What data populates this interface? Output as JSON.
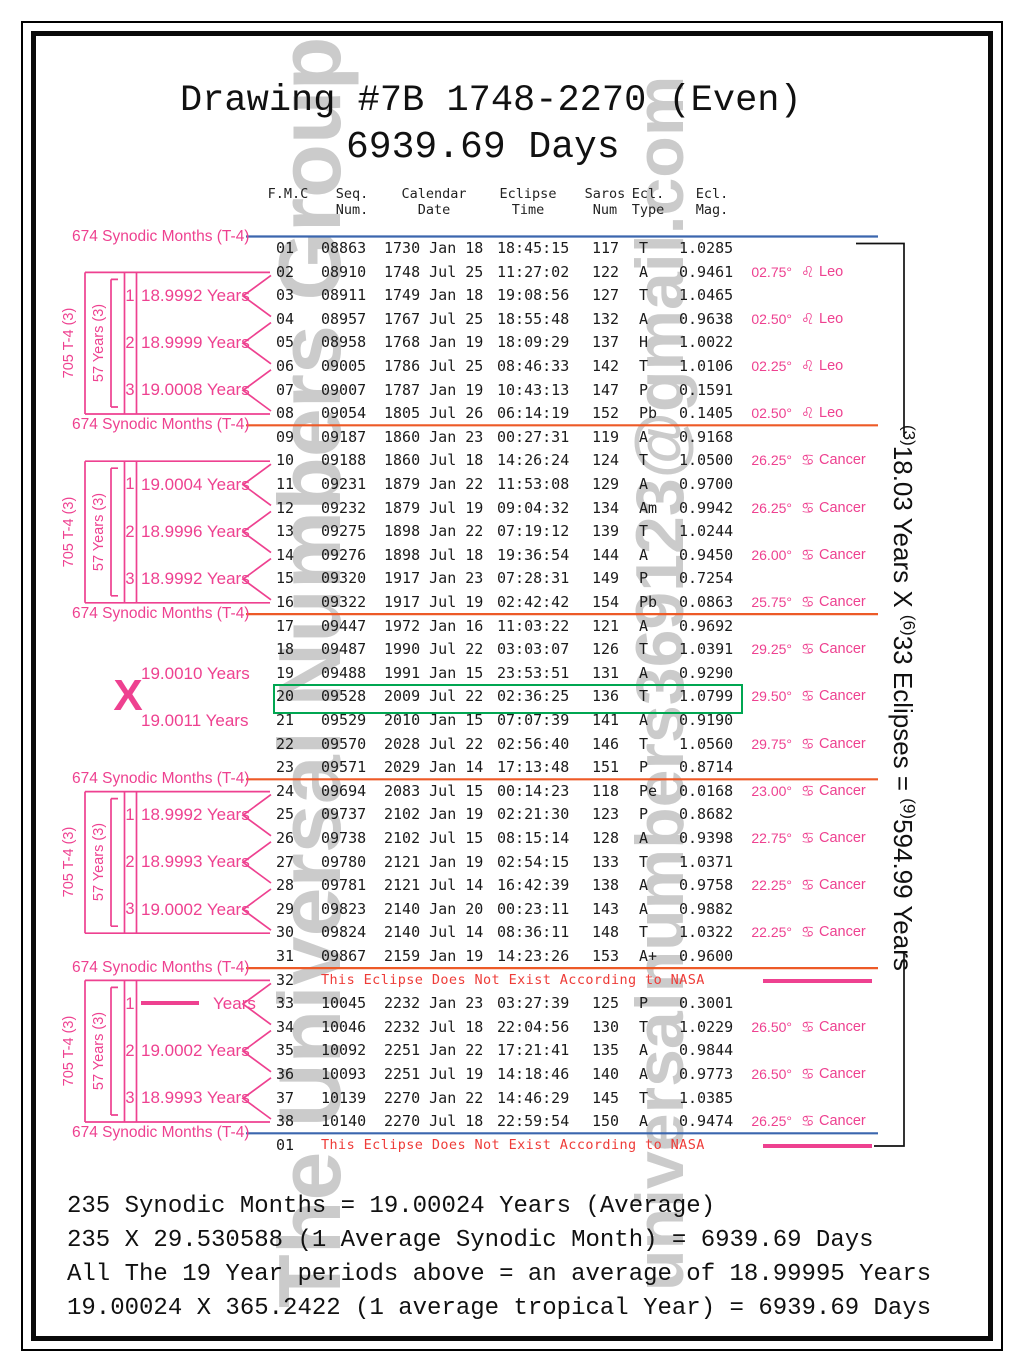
{
  "title": {
    "line1": "Drawing #7B 1748-2270 (Even)",
    "line2": "6939.69 Days"
  },
  "table": {
    "headers": [
      {
        "l1": "F.M.C",
        "l2": ""
      },
      {
        "l1": "Seq.",
        "l2": "Num."
      },
      {
        "l1": "Calendar",
        "l2": "Date"
      },
      {
        "l1": "Eclipse",
        "l2": "Time"
      },
      {
        "l1": "Saros",
        "l2": "Num"
      },
      {
        "l1": "Ecl.",
        "l2": "Type"
      },
      {
        "l1": "Ecl.",
        "l2": "Mag."
      }
    ],
    "rows": [
      {
        "n": "01",
        "seq": "08863",
        "date": "1730 Jan 18",
        "time": "18:45:15",
        "saros": "117",
        "type": "T",
        "mag": "1.0285"
      },
      {
        "n": "02",
        "seq": "08910",
        "date": "1748 Jul 25",
        "time": "11:27:02",
        "saros": "122",
        "type": "A",
        "mag": "0.9461",
        "deg": "02.75°",
        "sign": "leo"
      },
      {
        "n": "03",
        "seq": "08911",
        "date": "1749 Jan 18",
        "time": "19:08:56",
        "saros": "127",
        "type": "T",
        "mag": "1.0465"
      },
      {
        "n": "04",
        "seq": "08957",
        "date": "1767 Jul 25",
        "time": "18:55:48",
        "saros": "132",
        "type": "A",
        "mag": "0.9638",
        "deg": "02.50°",
        "sign": "leo"
      },
      {
        "n": "05",
        "seq": "08958",
        "date": "1768 Jan 19",
        "time": "18:09:29",
        "saros": "137",
        "type": "H",
        "mag": "1.0022"
      },
      {
        "n": "06",
        "seq": "09005",
        "date": "1786 Jul 25",
        "time": "08:46:33",
        "saros": "142",
        "type": "T",
        "mag": "1.0106",
        "deg": "02.25°",
        "sign": "leo"
      },
      {
        "n": "07",
        "seq": "09007",
        "date": "1787 Jan 19",
        "time": "10:43:13",
        "saros": "147",
        "type": "P",
        "mag": "0.1591"
      },
      {
        "n": "08",
        "seq": "09054",
        "date": "1805 Jul 26",
        "time": "06:14:19",
        "saros": "152",
        "type": "Pb",
        "mag": "0.1405",
        "deg": "02.50°",
        "sign": "leo"
      },
      {
        "n": "09",
        "seq": "09187",
        "date": "1860 Jan 23",
        "time": "00:27:31",
        "saros": "119",
        "type": "A",
        "mag": "0.9168"
      },
      {
        "n": "10",
        "seq": "09188",
        "date": "1860 Jul 18",
        "time": "14:26:24",
        "saros": "124",
        "type": "T",
        "mag": "1.0500",
        "deg": "26.25°",
        "sign": "cancer"
      },
      {
        "n": "11",
        "seq": "09231",
        "date": "1879 Jan 22",
        "time": "11:53:08",
        "saros": "129",
        "type": "A",
        "mag": "0.9700"
      },
      {
        "n": "12",
        "seq": "09232",
        "date": "1879 Jul 19",
        "time": "09:04:32",
        "saros": "134",
        "type": "Am",
        "mag": "0.9942",
        "deg": "26.25°",
        "sign": "cancer"
      },
      {
        "n": "13",
        "seq": "09275",
        "date": "1898 Jan 22",
        "time": "07:19:12",
        "saros": "139",
        "type": "T",
        "mag": "1.0244"
      },
      {
        "n": "14",
        "seq": "09276",
        "date": "1898 Jul 18",
        "time": "19:36:54",
        "saros": "144",
        "type": "A",
        "mag": "0.9450",
        "deg": "26.00°",
        "sign": "cancer"
      },
      {
        "n": "15",
        "seq": "09320",
        "date": "1917 Jan 23",
        "time": "07:28:31",
        "saros": "149",
        "type": "P",
        "mag": "0.7254"
      },
      {
        "n": "16",
        "seq": "09322",
        "date": "1917 Jul 19",
        "time": "02:42:42",
        "saros": "154",
        "type": "Pb",
        "mag": "0.0863",
        "deg": "25.75°",
        "sign": "cancer"
      },
      {
        "n": "17",
        "seq": "09447",
        "date": "1972 Jan 16",
        "time": "11:03:22",
        "saros": "121",
        "type": "A",
        "mag": "0.9692"
      },
      {
        "n": "18",
        "seq": "09487",
        "date": "1990 Jul 22",
        "time": "03:03:07",
        "saros": "126",
        "type": "T",
        "mag": "1.0391",
        "deg": "29.25°",
        "sign": "cancer"
      },
      {
        "n": "19",
        "seq": "09488",
        "date": "1991 Jan 15",
        "time": "23:53:51",
        "saros": "131",
        "type": "A",
        "mag": "0.9290"
      },
      {
        "n": "20",
        "seq": "09528",
        "date": "2009 Jul 22",
        "time": "02:36:25",
        "saros": "136",
        "type": "T",
        "mag": "1.0799",
        "deg": "29.50°",
        "sign": "cancer",
        "hl": true
      },
      {
        "n": "21",
        "seq": "09529",
        "date": "2010 Jan 15",
        "time": "07:07:39",
        "saros": "141",
        "type": "A",
        "mag": "0.9190"
      },
      {
        "n": "22",
        "seq": "09570",
        "date": "2028 Jul 22",
        "time": "02:56:40",
        "saros": "146",
        "type": "T",
        "mag": "1.0560",
        "deg": "29.75°",
        "sign": "cancer"
      },
      {
        "n": "23",
        "seq": "09571",
        "date": "2029 Jan 14",
        "time": "17:13:48",
        "saros": "151",
        "type": "P",
        "mag": "0.8714"
      },
      {
        "n": "24",
        "seq": "09694",
        "date": "2083 Jul 15",
        "time": "00:14:23",
        "saros": "118",
        "type": "Pe",
        "mag": "0.0168",
        "deg": "23.00°",
        "sign": "cancer"
      },
      {
        "n": "25",
        "seq": "09737",
        "date": "2102 Jan 19",
        "time": "02:21:30",
        "saros": "123",
        "type": "P",
        "mag": "0.8682"
      },
      {
        "n": "26",
        "seq": "09738",
        "date": "2102 Jul 15",
        "time": "08:15:14",
        "saros": "128",
        "type": "A",
        "mag": "0.9398",
        "deg": "22.75°",
        "sign": "cancer"
      },
      {
        "n": "27",
        "seq": "09780",
        "date": "2121 Jan 19",
        "time": "02:54:15",
        "saros": "133",
        "type": "T",
        "mag": "1.0371"
      },
      {
        "n": "28",
        "seq": "09781",
        "date": "2121 Jul 14",
        "time": "16:42:39",
        "saros": "138",
        "type": "A",
        "mag": "0.9758",
        "deg": "22.25°",
        "sign": "cancer"
      },
      {
        "n": "29",
        "seq": "09823",
        "date": "2140 Jan 20",
        "time": "00:23:11",
        "saros": "143",
        "type": "A",
        "mag": "0.9882"
      },
      {
        "n": "30",
        "seq": "09824",
        "date": "2140 Jul 14",
        "time": "08:36:11",
        "saros": "148",
        "type": "T",
        "mag": "1.0322",
        "deg": "22.25°",
        "sign": "cancer"
      },
      {
        "n": "31",
        "seq": "09867",
        "date": "2159 Jan 19",
        "time": "14:23:26",
        "saros": "153",
        "type": "A+",
        "mag": "0.9600"
      },
      {
        "n": "32",
        "missing": true
      },
      {
        "n": "33",
        "seq": "10045",
        "date": "2232 Jan 23",
        "time": "03:27:39",
        "saros": "125",
        "type": "P",
        "mag": "0.3001"
      },
      {
        "n": "34",
        "seq": "10046",
        "date": "2232 Jul 18",
        "time": "22:04:56",
        "saros": "130",
        "type": "T",
        "mag": "1.0229",
        "deg": "26.50°",
        "sign": "cancer"
      },
      {
        "n": "35",
        "seq": "10092",
        "date": "2251 Jan 22",
        "time": "17:21:41",
        "saros": "135",
        "type": "A",
        "mag": "0.9844"
      },
      {
        "n": "36",
        "seq": "10093",
        "date": "2251 Jul 19",
        "time": "14:18:46",
        "saros": "140",
        "type": "A",
        "mag": "0.9773",
        "deg": "26.50°",
        "sign": "cancer"
      },
      {
        "n": "37",
        "seq": "10139",
        "date": "2270 Jan 22",
        "time": "14:46:29",
        "saros": "145",
        "type": "T",
        "mag": "1.0385"
      },
      {
        "n": "38",
        "seq": "10140",
        "date": "2270 Jul 18",
        "time": "22:59:54",
        "saros": "150",
        "type": "A",
        "mag": "0.9474",
        "deg": "26.25°",
        "sign": "cancer"
      },
      {
        "n": "01",
        "missing": true
      }
    ]
  },
  "missing_text": "This Eclipse Does Not Exist According to NASA",
  "zodiac": {
    "leo": {
      "glyph": "♌",
      "name": "Leo"
    },
    "cancer": {
      "glyph": "♋",
      "name": "Cancer"
    }
  },
  "left": {
    "synodic_label": "674 Synodic Months (T-4)",
    "separators": [
      {
        "above_rows": 0,
        "color": "blue"
      },
      {
        "above_rows": 8,
        "color": "orange"
      },
      {
        "above_rows": 16,
        "color": "orange"
      },
      {
        "above_rows": 23,
        "color": "orange"
      },
      {
        "above_rows": 31,
        "color": "orange"
      },
      {
        "above_rows": 38,
        "color": "blue"
      }
    ],
    "groups": [
      {
        "bracket_outer": "705 T-4  (3)",
        "bracket_inner": "57 Years (3)",
        "first_row": 2,
        "last_row": 8,
        "items": [
          {
            "num": "1",
            "label": "18.9992 Years"
          },
          {
            "num": "2",
            "label": "18.9999 Years"
          },
          {
            "num": "3",
            "label": "19.0008 Years"
          }
        ]
      },
      {
        "bracket_outer": "705 T-4  (3)",
        "bracket_inner": "57 Years (3)",
        "first_row": 10,
        "last_row": 16,
        "items": [
          {
            "num": "1",
            "label": "19.0004 Years"
          },
          {
            "num": "2",
            "label": "18.9996 Years"
          },
          {
            "num": "3",
            "label": "18.9992 Years"
          }
        ]
      },
      {
        "bracket_outer": "705 T-4  (3)",
        "bracket_inner": "57 Years (3)",
        "first_row": 24,
        "last_row": 30,
        "items": [
          {
            "num": "1",
            "label": "18.9992 Years"
          },
          {
            "num": "2",
            "label": "18.9993 Years"
          },
          {
            "num": "3",
            "label": "19.0002 Years"
          }
        ]
      },
      {
        "bracket_outer": "705 T-4  (3)",
        "bracket_inner": "57 Years (3)",
        "first_row": 32,
        "last_row": 38,
        "items": [
          {
            "num": "1",
            "label": "Years",
            "dash": true
          },
          {
            "num": "2",
            "label": "19.0002 Years"
          },
          {
            "num": "3",
            "label": "18.9993 Years"
          }
        ]
      }
    ],
    "x_section": {
      "symbol": "X",
      "top_label": "19.0010 Years",
      "bottom_label": "19.0011 Years"
    }
  },
  "right_bracket": {
    "sup1": "(3)",
    "part1": "18.03 Years X ",
    "sup2": "(6)",
    "part2": "33 Eclipses = ",
    "sup3": "(9)",
    "part3": "594.99 Years"
  },
  "watermarks": {
    "name": "The Universal Numbers Group",
    "email": "universalnumbers369123@gmail.com"
  },
  "footer": {
    "lines": [
      "235 Synodic Months = 19.00024 Years (Average)",
      "235 X 29.530588 (1 Average Synodic Month) = 6939.69 Days",
      "All The 19 Year periods above = an average of 18.99995 Years",
      "19.00024 X 365.2422 (1 average tropical Year) = 6939.69 Days"
    ]
  },
  "colors": {
    "pink": "#ee4190",
    "red": "#ee3c38",
    "orange": "#ed5a27",
    "blue": "#3b66ae",
    "green": "#00a651",
    "watermark": "#cbcbcb"
  }
}
